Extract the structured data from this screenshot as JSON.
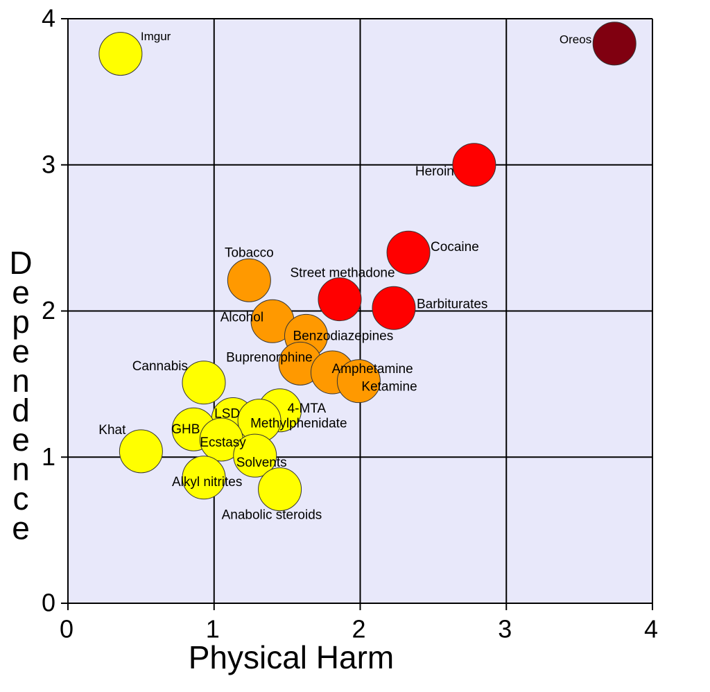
{
  "chart_data": {
    "type": "scatter",
    "x_label": "Physical Harm",
    "y_label": "Dependence",
    "xlim": [
      0,
      4
    ],
    "ylim": [
      0,
      4
    ],
    "xticks": [
      0,
      1,
      2,
      3,
      4
    ],
    "yticks": [
      0,
      1,
      2,
      3,
      4
    ],
    "grid": true,
    "points": [
      {
        "label": "Imgur",
        "x": 0.36,
        "y": 3.76,
        "color": "#ffff00"
      },
      {
        "label": "Oreos",
        "x": 3.74,
        "y": 3.83,
        "color": "#800010"
      },
      {
        "label": "Heroin",
        "x": 2.78,
        "y": 3.0,
        "color": "#ff0000"
      },
      {
        "label": "Cocaine",
        "x": 2.33,
        "y": 2.4,
        "color": "#ff0000"
      },
      {
        "label": "Street methadone",
        "x": 1.86,
        "y": 2.08,
        "color": "#ff0000"
      },
      {
        "label": "Barbiturates",
        "x": 2.23,
        "y": 2.02,
        "color": "#ff0000"
      },
      {
        "label": "Tobacco",
        "x": 1.24,
        "y": 2.21,
        "color": "#ff9900"
      },
      {
        "label": "Alcohol",
        "x": 1.4,
        "y": 1.93,
        "color": "#ff9900"
      },
      {
        "label": "Benzodiazepines",
        "x": 1.63,
        "y": 1.83,
        "color": "#ff9900"
      },
      {
        "label": "Buprenorphine",
        "x": 1.59,
        "y": 1.64,
        "color": "#ff9900"
      },
      {
        "label": "Amphetamine",
        "x": 1.81,
        "y": 1.58,
        "color": "#ff9900"
      },
      {
        "label": "Ketamine",
        "x": 1.99,
        "y": 1.52,
        "color": "#ff9900"
      },
      {
        "label": "Cannabis",
        "x": 0.93,
        "y": 1.51,
        "color": "#ffff00"
      },
      {
        "label": "4-MTA",
        "x": 1.45,
        "y": 1.32,
        "color": "#ffff00"
      },
      {
        "label": "LSD",
        "x": 1.13,
        "y": 1.26,
        "color": "#ffff00"
      },
      {
        "label": "Methylphenidate",
        "x": 1.31,
        "y": 1.25,
        "color": "#ffff00"
      },
      {
        "label": "GHB",
        "x": 0.86,
        "y": 1.19,
        "color": "#ffff00"
      },
      {
        "label": "Ecstasy",
        "x": 1.05,
        "y": 1.12,
        "color": "#ffff00"
      },
      {
        "label": "Khat",
        "x": 0.5,
        "y": 1.04,
        "color": "#ffff00"
      },
      {
        "label": "Solvents",
        "x": 1.28,
        "y": 1.01,
        "color": "#ffff00"
      },
      {
        "label": "Alkyl nitrites",
        "x": 0.93,
        "y": 0.86,
        "color": "#ffff00"
      },
      {
        "label": "Anabolic steroids",
        "x": 1.45,
        "y": 0.78,
        "color": "#ffff00"
      }
    ]
  }
}
